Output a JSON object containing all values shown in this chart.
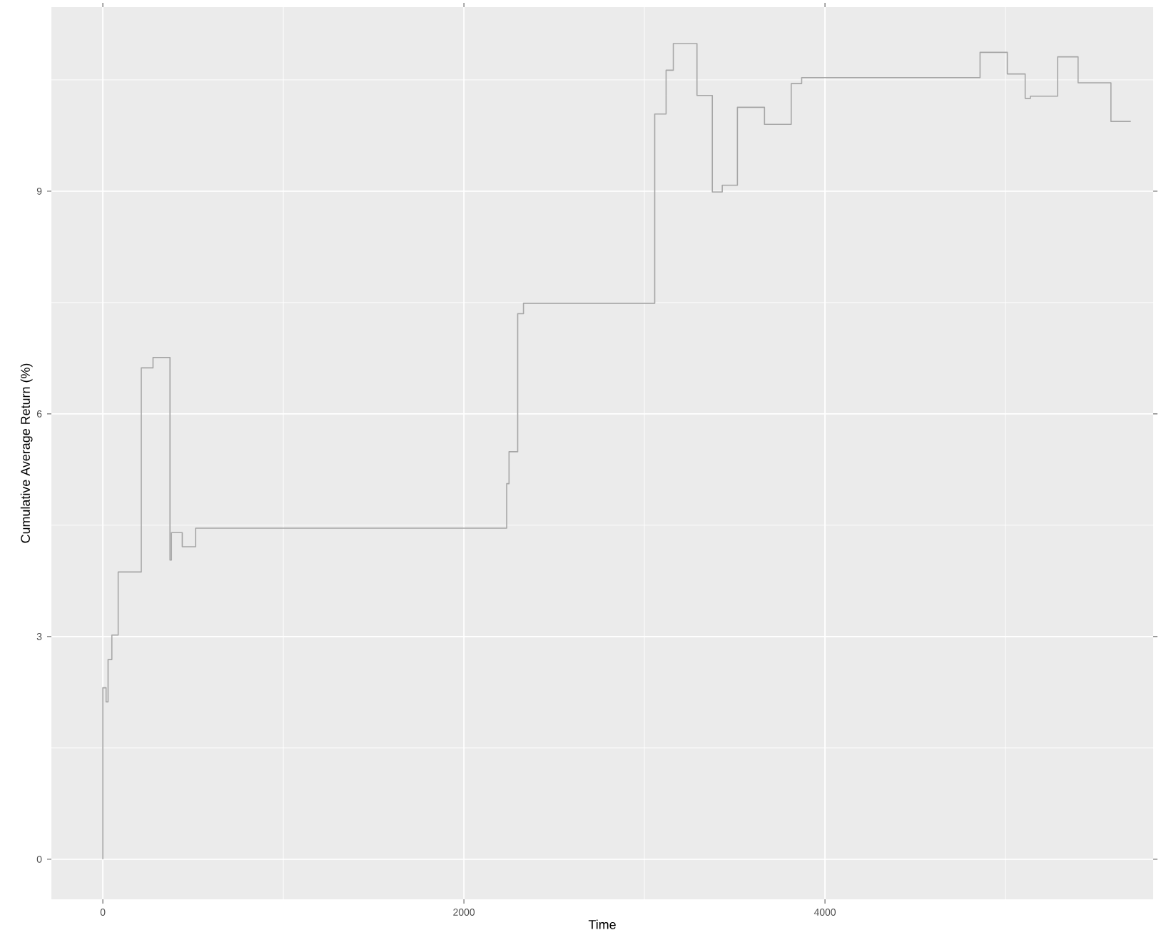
{
  "chart_data": {
    "type": "step",
    "xlabel": "Time",
    "ylabel": "Cumulative Average Return (%)",
    "x": [
      0,
      18,
      29,
      50,
      85,
      213,
      278,
      372,
      380,
      440,
      514,
      2237,
      2250,
      2298,
      2330,
      3057,
      3120,
      3160,
      3291,
      3376,
      3431,
      3515,
      3665,
      3813,
      3871,
      4859,
      5010,
      5109,
      5138,
      5289,
      5402,
      5584,
      5694
    ],
    "values": [
      0,
      2.31,
      2.12,
      2.69,
      3.02,
      3.87,
      6.62,
      6.76,
      4.03,
      4.4,
      4.21,
      4.46,
      5.06,
      5.49,
      7.35,
      7.49,
      10.04,
      10.63,
      10.99,
      10.29,
      8.99,
      9.08,
      10.13,
      9.9,
      10.45,
      10.53,
      10.87,
      10.58,
      10.25,
      10.28,
      10.81,
      10.46,
      9.94
    ],
    "color": "#a6a6a6",
    "xlim": [
      -285,
      5818
    ],
    "ylim": [
      -0.54,
      11.48
    ],
    "xticks": [
      0,
      2000,
      4000
    ],
    "yticks": [
      0,
      3,
      6,
      9
    ],
    "grid": true
  }
}
